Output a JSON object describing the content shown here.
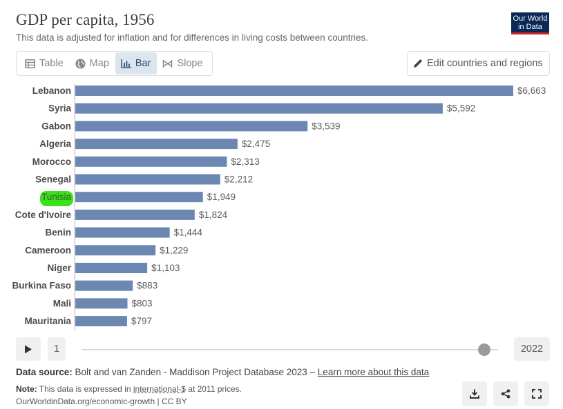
{
  "header": {
    "title": "GDP per capita, 1956",
    "subtitle": "This data is adjusted for inflation and for differences in living costs between countries.",
    "logo_line1": "Our World",
    "logo_line2": "in Data"
  },
  "tabs": [
    {
      "label": "Table",
      "icon": "table-icon",
      "active": false
    },
    {
      "label": "Map",
      "icon": "globe-icon",
      "active": false
    },
    {
      "label": "Bar",
      "icon": "bar-chart-icon",
      "active": true
    },
    {
      "label": "Slope",
      "icon": "slope-icon",
      "active": false
    }
  ],
  "edit_button": {
    "label": "Edit countries and regions",
    "icon": "pencil-icon"
  },
  "chart_data": {
    "type": "bar",
    "orientation": "horizontal",
    "categories": [
      "Lebanon",
      "Syria",
      "Gabon",
      "Algeria",
      "Morocco",
      "Senegal",
      "Tunisia",
      "Cote d'Ivoire",
      "Benin",
      "Cameroon",
      "Niger",
      "Burkina Faso",
      "Mali",
      "Mauritania"
    ],
    "values": [
      6663,
      5592,
      3539,
      2475,
      2313,
      2212,
      1949,
      1824,
      1444,
      1229,
      1103,
      883,
      803,
      797
    ],
    "value_labels": [
      "$6,663",
      "$5,592",
      "$3,539",
      "$2,475",
      "$2,313",
      "$2,212",
      "$1,949",
      "$1,824",
      "$1,444",
      "$1,229",
      "$1,103",
      "$883",
      "$803",
      "$797"
    ],
    "highlighted_category": "Tunisia",
    "highlight_color": "#3be21b",
    "bar_color": "#6d87b3",
    "xlim": [
      0,
      6663
    ]
  },
  "timeline": {
    "start_year": "1",
    "end_year": "2022",
    "position": 0.97
  },
  "footer": {
    "source_label": "Data source:",
    "source_text": "Bolt and van Zanden - Maddison Project Database 2023 –",
    "source_link": "Learn more about this data",
    "note_label": "Note:",
    "note_text_before": "This data is expressed in",
    "note_link": "international-$",
    "note_text_after": "at 2011 prices.",
    "attribution": "OurWorldinData.org/economic-growth | CC BY"
  },
  "colors": {
    "accent": "#dbe5f0",
    "logo_bg": "#0a2a55",
    "logo_stripe": "#ce261e"
  }
}
